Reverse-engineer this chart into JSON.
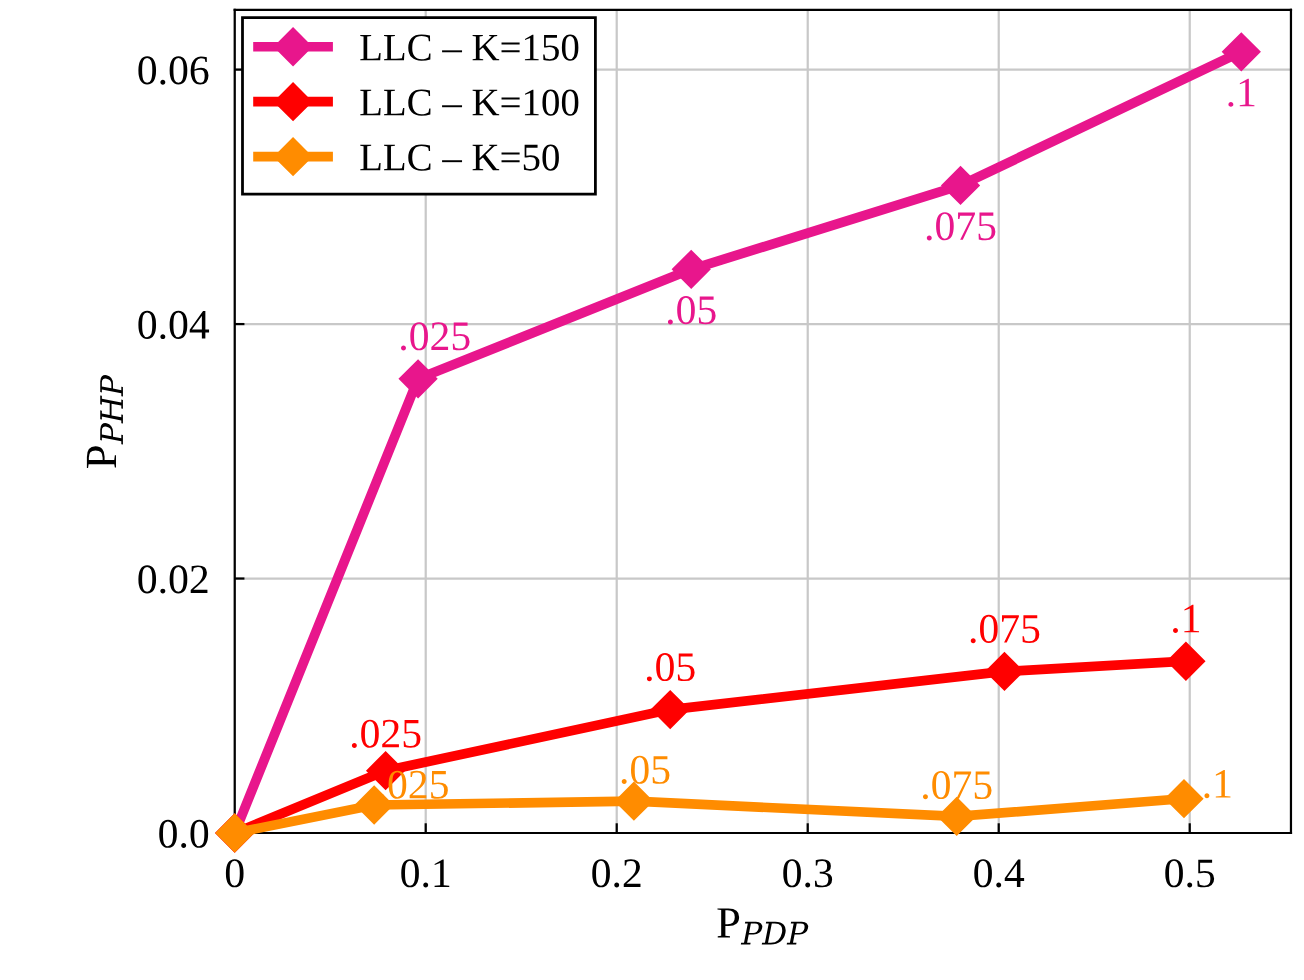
{
  "chart_data": {
    "type": "line",
    "xlabel": "P$_{PDP}$",
    "ylabel": "P$_{PHP}$",
    "xlim": [
      0,
      0.553
    ],
    "ylim": [
      0,
      0.0647
    ],
    "xticks": [
      0,
      0.1,
      0.2,
      0.3,
      0.4,
      0.5
    ],
    "yticks": [
      {
        "value": 0,
        "label": "0.0"
      },
      0.02,
      0.04,
      0.06
    ],
    "grid": true,
    "legend": "top left",
    "marker": "diamond",
    "line_style": "solid",
    "series": [
      {
        "name": "LLC – K=150",
        "color": "#e8168c",
        "x": [
          0,
          0.096,
          0.239,
          0.38,
          0.527
        ],
        "values": [
          0,
          0.0357,
          0.0443,
          0.0509,
          0.0614
        ]
      },
      {
        "name": "LLC – K=100",
        "color": "#ff0000",
        "x": [
          0,
          0.079,
          0.228,
          0.403,
          0.498
        ],
        "values": [
          0,
          0.0049,
          0.0097,
          0.0127,
          0.0135
        ]
      },
      {
        "name": "LLC – K=50",
        "color": "#ff8c00",
        "x": [
          0,
          0.073,
          0.209,
          0.378,
          0.497
        ],
        "values": [
          0,
          0.0022,
          0.0025,
          0.0013,
          0.0027
        ]
      }
    ],
    "annotations": [
      {
        "text": ".025",
        "x": 0.096,
        "y": 0.0357
      },
      {
        "text": ".05",
        "x": 0.239,
        "y": 0.0443
      },
      {
        "text": ".075",
        "x": 0.38,
        "y": 0.0509
      },
      {
        "text": ".1",
        "x": 0.527,
        "y": 0.0614
      },
      {
        "text": ".025",
        "x": 0.079,
        "y": 0.0049
      },
      {
        "text": ".05",
        "x": 0.228,
        "y": 0.0097
      },
      {
        "text": ".075",
        "x": 0.403,
        "y": 0.0127
      },
      {
        "text": ".1",
        "x": 0.498,
        "y": 0.0135
      },
      {
        "text": ".025",
        "x": 0.073,
        "y": 0.0022
      },
      {
        "text": ".05",
        "x": 0.209,
        "y": 0.0025
      },
      {
        "text": ".075",
        "x": 0.378,
        "y": 0.0013
      },
      {
        "text": ".1",
        "x": 0.497,
        "y": 0.0027
      }
    ]
  }
}
